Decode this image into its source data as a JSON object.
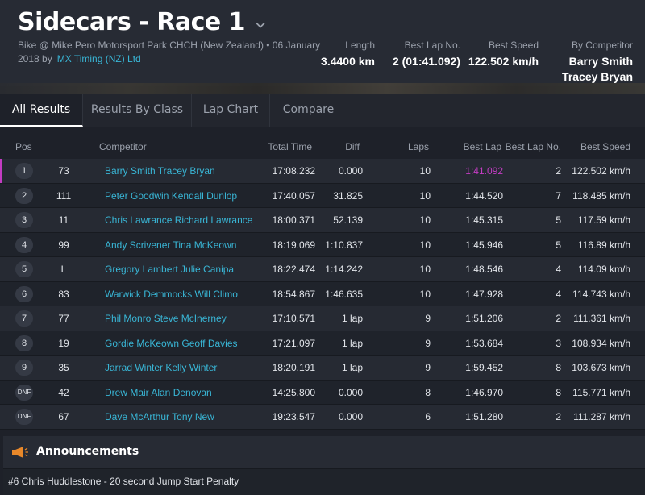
{
  "header": {
    "title": "Sidecars - Race 1",
    "subtitle": "Bike @ Mike Pero Motorsport Park CHCH (New Zealand) • 06 January 2018 by",
    "timing_link": "MX Timing (NZ) Ltd",
    "stats": [
      {
        "label": "Length",
        "value": "3.4400 km"
      },
      {
        "label": "Best Lap No.",
        "value": "2 (01:41.092)"
      },
      {
        "label": "Best Speed",
        "value": "122.502 km/h"
      },
      {
        "label": "By Competitor",
        "value": "Barry Smith Tracey Bryan"
      }
    ]
  },
  "tabs": [
    {
      "label": "All Results",
      "active": true
    },
    {
      "label": "Results By Class",
      "active": false
    },
    {
      "label": "Lap Chart",
      "active": false
    },
    {
      "label": "Compare",
      "active": false
    }
  ],
  "columns": {
    "pos": "Pos",
    "competitor": "Competitor",
    "total_time": "Total Time",
    "diff": "Diff",
    "laps": "Laps",
    "best_lap": "Best Lap",
    "best_lap_no": "Best Lap No.",
    "best_speed": "Best Speed"
  },
  "results": [
    {
      "pos": "1",
      "number": "73",
      "competitor": "Barry Smith Tracey Bryan",
      "total_time": "17:08.232",
      "diff": "0.000",
      "laps": "10",
      "best_lap": "1:41.092",
      "best_lap_no": "2",
      "best_speed": "122.502 km/h"
    },
    {
      "pos": "2",
      "number": "111",
      "competitor": "Peter Goodwin Kendall Dunlop",
      "total_time": "17:40.057",
      "diff": "31.825",
      "laps": "10",
      "best_lap": "1:44.520",
      "best_lap_no": "7",
      "best_speed": "118.485 km/h"
    },
    {
      "pos": "3",
      "number": "11",
      "competitor": "Chris Lawrance Richard Lawrance",
      "total_time": "18:00.371",
      "diff": "52.139",
      "laps": "10",
      "best_lap": "1:45.315",
      "best_lap_no": "5",
      "best_speed": "117.59 km/h"
    },
    {
      "pos": "4",
      "number": "99",
      "competitor": "Andy Scrivener Tina McKeown",
      "total_time": "18:19.069",
      "diff": "1:10.837",
      "laps": "10",
      "best_lap": "1:45.946",
      "best_lap_no": "5",
      "best_speed": "116.89 km/h"
    },
    {
      "pos": "5",
      "number": "L",
      "competitor": "Gregory Lambert Julie Canipa",
      "total_time": "18:22.474",
      "diff": "1:14.242",
      "laps": "10",
      "best_lap": "1:48.546",
      "best_lap_no": "4",
      "best_speed": "114.09 km/h"
    },
    {
      "pos": "6",
      "number": "83",
      "competitor": "Warwick Demmocks Will Climo",
      "total_time": "18:54.867",
      "diff": "1:46.635",
      "laps": "10",
      "best_lap": "1:47.928",
      "best_lap_no": "4",
      "best_speed": "114.743 km/h"
    },
    {
      "pos": "7",
      "number": "77",
      "competitor": "Phil Monro Steve McInerney",
      "total_time": "17:10.571",
      "diff": "1 lap",
      "laps": "9",
      "best_lap": "1:51.206",
      "best_lap_no": "2",
      "best_speed": "111.361 km/h"
    },
    {
      "pos": "8",
      "number": "19",
      "competitor": "Gordie McKeown Geoff Davies",
      "total_time": "17:21.097",
      "diff": "1 lap",
      "laps": "9",
      "best_lap": "1:53.684",
      "best_lap_no": "3",
      "best_speed": "108.934 km/h"
    },
    {
      "pos": "9",
      "number": "35",
      "competitor": "Jarrad Winter Kelly Winter",
      "total_time": "18:20.191",
      "diff": "1 lap",
      "laps": "9",
      "best_lap": "1:59.452",
      "best_lap_no": "8",
      "best_speed": "103.673 km/h"
    },
    {
      "pos": "DNF",
      "number": "42",
      "competitor": "Drew Mair Alan Denovan",
      "total_time": "14:25.800",
      "diff": "0.000",
      "laps": "8",
      "best_lap": "1:46.970",
      "best_lap_no": "8",
      "best_speed": "115.771 km/h"
    },
    {
      "pos": "DNF",
      "number": "67",
      "competitor": "Dave McArthur Tony New",
      "total_time": "19:23.547",
      "diff": "0.000",
      "laps": "6",
      "best_lap": "1:51.280",
      "best_lap_no": "2",
      "best_speed": "111.287 km/h"
    }
  ],
  "announcements": {
    "title": "Announcements",
    "items": [
      "#6 Chris Huddlestone - 20 second Jump Start Penalty"
    ]
  },
  "colors": {
    "accent": "#39b6d6",
    "fastest_lap": "#c43cc4",
    "announce_icon": "#e8882a"
  },
  "icons": {
    "title_dropdown": "chevron-down-icon",
    "announcements": "megaphone-icon"
  }
}
